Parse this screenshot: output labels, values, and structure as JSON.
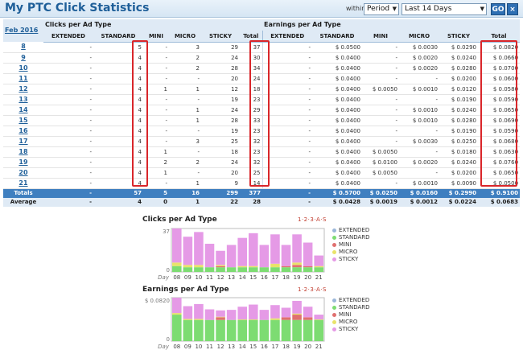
{
  "header": {
    "title": "My PTC Click Statistics",
    "within_label": "within:",
    "period_select": "Period",
    "range_select": "Last 14 Days",
    "go_label": "GO",
    "close_label": "×"
  },
  "table": {
    "month_link": "Feb 2016",
    "clicks_group": "Clicks per Ad Type",
    "earnings_group": "Earnings per Ad Type",
    "click_cols": [
      "EXTENDED",
      "STANDARD",
      "MINI",
      "MICRO",
      "STICKY",
      "Total"
    ],
    "earn_cols": [
      "EXTENDED",
      "STANDARD",
      "MINI",
      "MICRO",
      "STICKY",
      "Total"
    ],
    "rows": [
      {
        "day": "8",
        "c": [
          "-",
          "5",
          "-",
          "3",
          "29",
          "37"
        ],
        "e": [
          "-",
          "$ 0.0500",
          "-",
          "$ 0.0030",
          "$ 0.0290",
          "$ 0.0820"
        ]
      },
      {
        "day": "9",
        "c": [
          "-",
          "4",
          "-",
          "2",
          "24",
          "30"
        ],
        "e": [
          "-",
          "$ 0.0400",
          "-",
          "$ 0.0020",
          "$ 0.0240",
          "$ 0.0660"
        ]
      },
      {
        "day": "10",
        "c": [
          "-",
          "4",
          "-",
          "2",
          "28",
          "34"
        ],
        "e": [
          "-",
          "$ 0.0400",
          "-",
          "$ 0.0020",
          "$ 0.0280",
          "$ 0.0700"
        ]
      },
      {
        "day": "11",
        "c": [
          "-",
          "4",
          "-",
          "-",
          "20",
          "24"
        ],
        "e": [
          "-",
          "$ 0.0400",
          "-",
          "-",
          "$ 0.0200",
          "$ 0.0600"
        ]
      },
      {
        "day": "12",
        "c": [
          "-",
          "4",
          "1",
          "1",
          "12",
          "18"
        ],
        "e": [
          "-",
          "$ 0.0400",
          "$ 0.0050",
          "$ 0.0010",
          "$ 0.0120",
          "$ 0.0580"
        ]
      },
      {
        "day": "13",
        "c": [
          "-",
          "4",
          "-",
          "-",
          "19",
          "23"
        ],
        "e": [
          "-",
          "$ 0.0400",
          "-",
          "-",
          "$ 0.0190",
          "$ 0.0590"
        ]
      },
      {
        "day": "14",
        "c": [
          "-",
          "4",
          "-",
          "1",
          "24",
          "29"
        ],
        "e": [
          "-",
          "$ 0.0400",
          "-",
          "$ 0.0010",
          "$ 0.0240",
          "$ 0.0650"
        ]
      },
      {
        "day": "15",
        "c": [
          "-",
          "4",
          "-",
          "1",
          "28",
          "33"
        ],
        "e": [
          "-",
          "$ 0.0400",
          "-",
          "$ 0.0010",
          "$ 0.0280",
          "$ 0.0690"
        ]
      },
      {
        "day": "16",
        "c": [
          "-",
          "4",
          "-",
          "-",
          "19",
          "23"
        ],
        "e": [
          "-",
          "$ 0.0400",
          "-",
          "-",
          "$ 0.0190",
          "$ 0.0590"
        ]
      },
      {
        "day": "17",
        "c": [
          "-",
          "4",
          "-",
          "3",
          "25",
          "32"
        ],
        "e": [
          "-",
          "$ 0.0400",
          "-",
          "$ 0.0030",
          "$ 0.0250",
          "$ 0.0680"
        ]
      },
      {
        "day": "18",
        "c": [
          "-",
          "4",
          "1",
          "-",
          "18",
          "23"
        ],
        "e": [
          "-",
          "$ 0.0400",
          "$ 0.0050",
          "-",
          "$ 0.0180",
          "$ 0.0630"
        ]
      },
      {
        "day": "19",
        "c": [
          "-",
          "4",
          "2",
          "2",
          "24",
          "32"
        ],
        "e": [
          "-",
          "$ 0.0400",
          "$ 0.0100",
          "$ 0.0020",
          "$ 0.0240",
          "$ 0.0760"
        ]
      },
      {
        "day": "20",
        "c": [
          "-",
          "4",
          "1",
          "-",
          "20",
          "25"
        ],
        "e": [
          "-",
          "$ 0.0400",
          "$ 0.0050",
          "-",
          "$ 0.0200",
          "$ 0.0650"
        ]
      },
      {
        "day": "21",
        "c": [
          "-",
          "4",
          "-",
          "1",
          "9",
          "14"
        ],
        "e": [
          "-",
          "$ 0.0400",
          "-",
          "$ 0.0010",
          "$ 0.0090",
          "$ 0.0500"
        ]
      }
    ],
    "totals": {
      "label": "Totals",
      "c": [
        "-",
        "57",
        "5",
        "16",
        "299",
        "377"
      ],
      "e": [
        "-",
        "$ 0.5700",
        "$ 0.0250",
        "$ 0.0160",
        "$ 0.2990",
        "$ 0.9100"
      ]
    },
    "averages": {
      "label": "Average",
      "c": [
        "-",
        "4",
        "0",
        "1",
        "22",
        "28"
      ],
      "e": [
        "-",
        "$ 0.0428",
        "$ 0.0019",
        "$ 0.0012",
        "$ 0.0224",
        "$ 0.0683"
      ]
    }
  },
  "colors": {
    "extended": "#9bb7d9",
    "standard": "#7ddc72",
    "mini": "#e0706f",
    "micro": "#e9e36a",
    "sticky": "#e59ae6",
    "highlight": "#d9262a",
    "accent": "#3f7fc0"
  },
  "charts": {
    "controls": "1·2·3·A·S",
    "day_label": "Day",
    "clicks_title": "Clicks per Ad Type",
    "earnings_title": "Earnings per Ad Type",
    "clicks_ymax_label": "37",
    "clicks_ymin_label": "0",
    "earnings_ymax_label": "$ 0.0820",
    "earnings_ymin_label": "0"
  },
  "chart_data": [
    {
      "type": "bar",
      "title": "Clicks per Ad Type",
      "stacked": true,
      "categories": [
        "08",
        "09",
        "10",
        "11",
        "12",
        "13",
        "14",
        "15",
        "16",
        "17",
        "18",
        "19",
        "20",
        "21"
      ],
      "ylim": [
        0,
        37
      ],
      "series": [
        {
          "name": "EXTENDED",
          "values": [
            0,
            0,
            0,
            0,
            0,
            0,
            0,
            0,
            0,
            0,
            0,
            0,
            0,
            0
          ]
        },
        {
          "name": "STANDARD",
          "values": [
            5,
            4,
            4,
            4,
            4,
            4,
            4,
            4,
            4,
            4,
            4,
            4,
            4,
            4
          ]
        },
        {
          "name": "MINI",
          "values": [
            0,
            0,
            0,
            0,
            1,
            0,
            0,
            0,
            0,
            0,
            1,
            2,
            1,
            0
          ]
        },
        {
          "name": "MICRO",
          "values": [
            3,
            2,
            2,
            0,
            1,
            0,
            1,
            1,
            0,
            3,
            0,
            2,
            0,
            1
          ]
        },
        {
          "name": "STICKY",
          "values": [
            29,
            24,
            28,
            20,
            12,
            19,
            24,
            28,
            19,
            25,
            18,
            24,
            20,
            9
          ]
        }
      ],
      "legend": "right"
    },
    {
      "type": "bar",
      "title": "Earnings per Ad Type",
      "stacked": true,
      "categories": [
        "08",
        "09",
        "10",
        "11",
        "12",
        "13",
        "14",
        "15",
        "16",
        "17",
        "18",
        "19",
        "20",
        "21"
      ],
      "ylim": [
        0,
        0.082
      ],
      "series": [
        {
          "name": "EXTENDED",
          "values": [
            0,
            0,
            0,
            0,
            0,
            0,
            0,
            0,
            0,
            0,
            0,
            0,
            0,
            0
          ]
        },
        {
          "name": "STANDARD",
          "values": [
            0.05,
            0.04,
            0.04,
            0.04,
            0.04,
            0.04,
            0.04,
            0.04,
            0.04,
            0.04,
            0.04,
            0.04,
            0.04,
            0.04
          ]
        },
        {
          "name": "MINI",
          "values": [
            0,
            0,
            0,
            0,
            0.005,
            0,
            0,
            0,
            0,
            0,
            0.005,
            0.01,
            0.005,
            0
          ]
        },
        {
          "name": "MICRO",
          "values": [
            0.003,
            0.002,
            0.002,
            0,
            0.001,
            0,
            0.001,
            0.001,
            0,
            0.003,
            0,
            0.002,
            0,
            0.001
          ]
        },
        {
          "name": "STICKY",
          "values": [
            0.029,
            0.024,
            0.028,
            0.02,
            0.012,
            0.019,
            0.024,
            0.028,
            0.019,
            0.025,
            0.018,
            0.024,
            0.02,
            0.009
          ]
        }
      ],
      "legend": "right"
    }
  ]
}
